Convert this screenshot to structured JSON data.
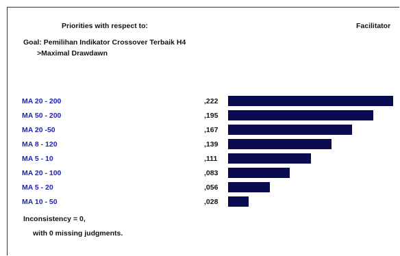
{
  "header": {
    "title": "Priorities with respect to:",
    "goal_line1": "Goal: Pemilihan Indikator Crossover Terbaik H4",
    "goal_line2": ">Maximal Drawdawn",
    "right_label": "Facilitator"
  },
  "chart_data": {
    "type": "bar",
    "orientation": "horizontal",
    "categories": [
      "MA 20 - 200",
      "MA 50 - 200",
      "MA 20 -50",
      "MA 8 - 120",
      "MA 5 - 10",
      "MA 20 - 100",
      "MA 5 - 20",
      "MA 10 - 50"
    ],
    "values": [
      0.222,
      0.195,
      0.167,
      0.139,
      0.111,
      0.083,
      0.056,
      0.028
    ],
    "value_labels": [
      ",222",
      ",195",
      ",167",
      ",139",
      ",111",
      ",083",
      ",056",
      ",028"
    ],
    "bar_color": "#0a0a50",
    "label_color": "#2020c0"
  },
  "footer": {
    "inconsistency": "Inconsistency = 0,",
    "missing": "with 0  missing judgments."
  }
}
